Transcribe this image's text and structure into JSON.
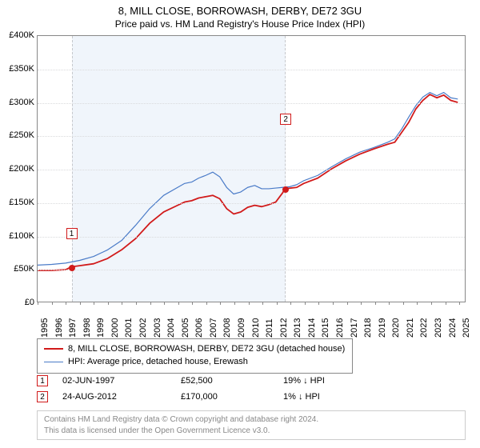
{
  "title": "8, MILL CLOSE, BORROWASH, DERBY, DE72 3GU",
  "subtitle": "Price paid vs. HM Land Registry's House Price Index (HPI)",
  "chart": {
    "type": "line",
    "background_color": "#ffffff",
    "grid_color": "#d9dadc",
    "axis_color": "#888888",
    "xlim": [
      1995,
      2025.5
    ],
    "ylim": [
      0,
      400000
    ],
    "ytick_step": 50000,
    "y_axis_labels": [
      "£0",
      "£50K",
      "£100K",
      "£150K",
      "£200K",
      "£250K",
      "£300K",
      "£350K",
      "£400K"
    ],
    "x_ticks": [
      1995,
      1996,
      1997,
      1998,
      1999,
      2000,
      2001,
      2002,
      2003,
      2004,
      2005,
      2006,
      2007,
      2008,
      2009,
      2010,
      2011,
      2012,
      2013,
      2014,
      2015,
      2016,
      2017,
      2018,
      2019,
      2020,
      2021,
      2022,
      2023,
      2024,
      2025
    ],
    "shaded_region": {
      "start": 1997.42,
      "end": 2012.65,
      "fill": "#f0f5fb",
      "border": "#c6c8cc"
    },
    "series": [
      {
        "name": "property",
        "label": "8, MILL CLOSE, BORROWASH, DERBY, DE72 3GU (detached house)",
        "color": "#d11a1a",
        "line_width": 1.8,
        "data": [
          [
            1995.0,
            47000
          ],
          [
            1996.0,
            47000
          ],
          [
            1997.0,
            48000
          ],
          [
            1997.42,
            52500
          ],
          [
            1998.0,
            54000
          ],
          [
            1999.0,
            57000
          ],
          [
            2000.0,
            65000
          ],
          [
            2001.0,
            78000
          ],
          [
            2002.0,
            95000
          ],
          [
            2003.0,
            118000
          ],
          [
            2004.0,
            135000
          ],
          [
            2005.0,
            145000
          ],
          [
            2005.5,
            150000
          ],
          [
            2006.0,
            152000
          ],
          [
            2006.5,
            156000
          ],
          [
            2007.0,
            158000
          ],
          [
            2007.5,
            160000
          ],
          [
            2008.0,
            155000
          ],
          [
            2008.5,
            140000
          ],
          [
            2009.0,
            132000
          ],
          [
            2009.5,
            135000
          ],
          [
            2010.0,
            142000
          ],
          [
            2010.5,
            145000
          ],
          [
            2011.0,
            143000
          ],
          [
            2011.5,
            146000
          ],
          [
            2012.0,
            150000
          ],
          [
            2012.5,
            164000
          ],
          [
            2012.65,
            170000
          ],
          [
            2013.5,
            172000
          ],
          [
            2014.0,
            178000
          ],
          [
            2015.0,
            186000
          ],
          [
            2016.0,
            200000
          ],
          [
            2017.0,
            212000
          ],
          [
            2018.0,
            222000
          ],
          [
            2019.0,
            230000
          ],
          [
            2020.0,
            237000
          ],
          [
            2020.5,
            240000
          ],
          [
            2021.0,
            255000
          ],
          [
            2021.5,
            270000
          ],
          [
            2022.0,
            290000
          ],
          [
            2022.5,
            303000
          ],
          [
            2023.0,
            312000
          ],
          [
            2023.5,
            307000
          ],
          [
            2024.0,
            311000
          ],
          [
            2024.5,
            303000
          ],
          [
            2025.0,
            300000
          ]
        ]
      },
      {
        "name": "hpi",
        "label": "HPI: Average price, detached house, Erewash",
        "color": "#4a7bc8",
        "line_width": 1.2,
        "data": [
          [
            1995.0,
            55000
          ],
          [
            1996.0,
            56000
          ],
          [
            1997.0,
            58000
          ],
          [
            1998.0,
            62000
          ],
          [
            1999.0,
            68000
          ],
          [
            2000.0,
            78000
          ],
          [
            2001.0,
            92000
          ],
          [
            2002.0,
            115000
          ],
          [
            2003.0,
            140000
          ],
          [
            2004.0,
            160000
          ],
          [
            2005.0,
            172000
          ],
          [
            2005.5,
            178000
          ],
          [
            2006.0,
            180000
          ],
          [
            2006.5,
            186000
          ],
          [
            2007.0,
            190000
          ],
          [
            2007.5,
            195000
          ],
          [
            2008.0,
            188000
          ],
          [
            2008.5,
            172000
          ],
          [
            2009.0,
            162000
          ],
          [
            2009.5,
            165000
          ],
          [
            2010.0,
            172000
          ],
          [
            2010.5,
            175000
          ],
          [
            2011.0,
            170000
          ],
          [
            2011.5,
            170000
          ],
          [
            2012.0,
            171000
          ],
          [
            2012.5,
            172000
          ],
          [
            2013.0,
            173000
          ],
          [
            2013.5,
            176000
          ],
          [
            2014.0,
            182000
          ],
          [
            2015.0,
            190000
          ],
          [
            2016.0,
            203000
          ],
          [
            2017.0,
            215000
          ],
          [
            2018.0,
            225000
          ],
          [
            2019.0,
            232000
          ],
          [
            2020.0,
            240000
          ],
          [
            2020.5,
            245000
          ],
          [
            2021.0,
            260000
          ],
          [
            2021.5,
            278000
          ],
          [
            2022.0,
            295000
          ],
          [
            2022.5,
            308000
          ],
          [
            2023.0,
            315000
          ],
          [
            2023.5,
            310000
          ],
          [
            2024.0,
            315000
          ],
          [
            2024.5,
            307000
          ],
          [
            2025.0,
            305000
          ]
        ]
      }
    ],
    "sale_markers": [
      {
        "n": "1",
        "year": 1997.42,
        "price": 52500,
        "label_y_offset": -50
      },
      {
        "n": "2",
        "year": 2012.65,
        "price": 170000,
        "label_y_offset": -95
      }
    ],
    "sale_dot_color": "#d11a1a"
  },
  "legend": {
    "items": [
      {
        "color": "#d11a1a",
        "line_width": 2,
        "label": "8, MILL CLOSE, BORROWASH, DERBY, DE72 3GU (detached house)"
      },
      {
        "color": "#4a7bc8",
        "line_width": 1,
        "label": "HPI: Average price, detached house, Erewash"
      }
    ]
  },
  "sales_table": {
    "rows": [
      {
        "n": "1",
        "date": "02-JUN-1997",
        "price": "£52,500",
        "delta": "19% ↓ HPI"
      },
      {
        "n": "2",
        "date": "24-AUG-2012",
        "price": "£170,000",
        "delta": "1% ↓ HPI"
      }
    ],
    "col_widths": {
      "marker": 24,
      "date": 130,
      "price": 110,
      "delta": 100
    }
  },
  "footer": {
    "line1": "Contains HM Land Registry data © Crown copyright and database right 2024.",
    "line2": "This data is licensed under the Open Government Licence v3.0."
  }
}
